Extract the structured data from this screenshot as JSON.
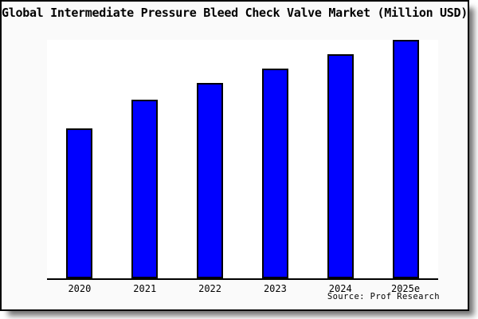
{
  "title": "Global Intermediate Pressure Bleed Check Valve Market (Million USD)",
  "source_note": "Source: Prof Research",
  "colors": {
    "bar_fill": "#0000ff",
    "bar_border": "#000000",
    "frame_bg": "#fafafa",
    "plot_bg": "#ffffff",
    "axis": "#000000"
  },
  "chart_data": {
    "type": "bar",
    "title": "Global Intermediate Pressure Bleed Check Valve Market (Million USD)",
    "categories": [
      "2020",
      "2021",
      "2022",
      "2023",
      "2024",
      "2025e"
    ],
    "values": [
      63,
      75,
      82,
      88,
      94,
      100
    ],
    "value_basis": "relative bar heights as percent of tallest bar (no y-axis tick labels shown in chart)",
    "xlabel": "",
    "ylabel": "",
    "ylim": [
      0,
      100
    ],
    "grid": false,
    "legend": null,
    "source": "Source: Prof Research"
  }
}
